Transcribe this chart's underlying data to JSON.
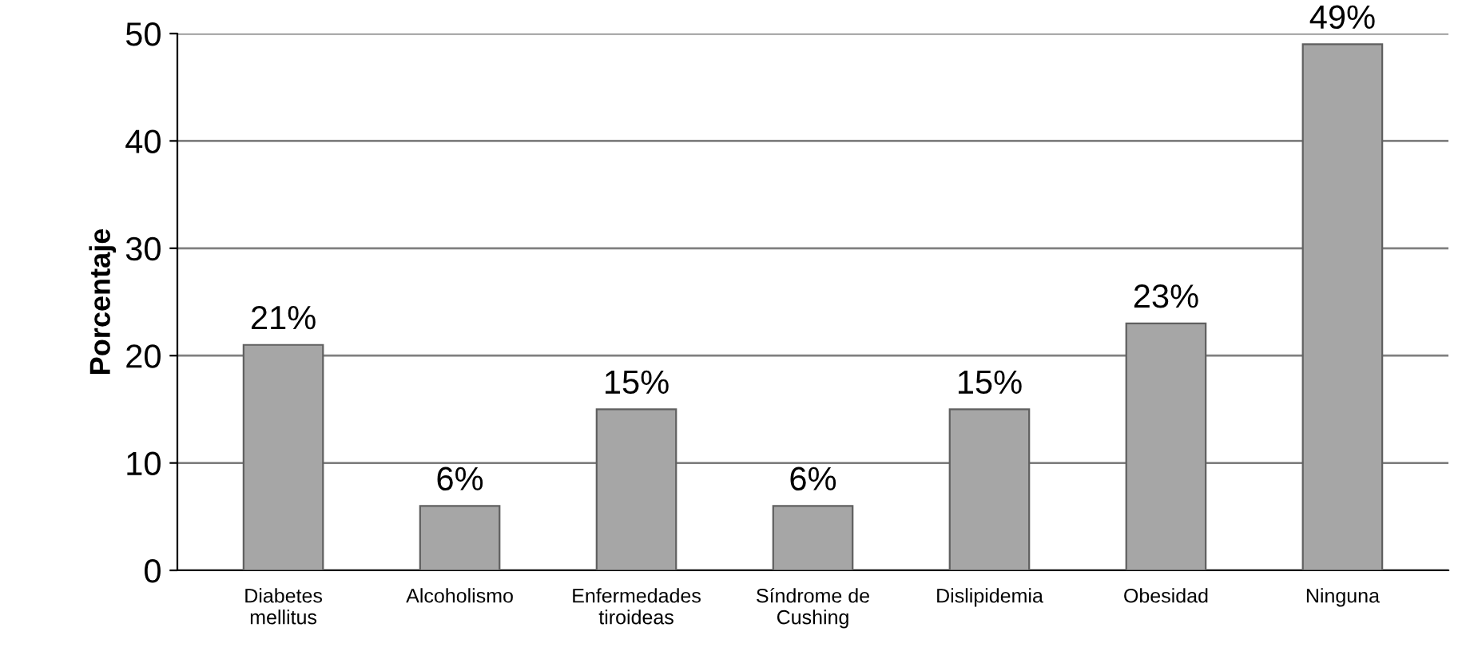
{
  "chart_data": {
    "type": "bar",
    "ylabel": "Porcentaje",
    "categories": [
      "Diabetes\nmellitus",
      "Alcoholismo",
      "Enfermedades\ntiroideas",
      "Síndrome de\nCushing",
      "Dislipidemia",
      "Obesidad",
      "Ninguna"
    ],
    "values": [
      21,
      6,
      15,
      6,
      15,
      23,
      49
    ],
    "value_labels": [
      "21%",
      "6%",
      "15%",
      "6%",
      "15%",
      "23%",
      "49%"
    ],
    "color": "#a6a6a6",
    "ylim": [
      0,
      50
    ],
    "yticks": [
      0,
      10,
      20,
      30,
      40,
      50
    ],
    "grid": "y"
  }
}
